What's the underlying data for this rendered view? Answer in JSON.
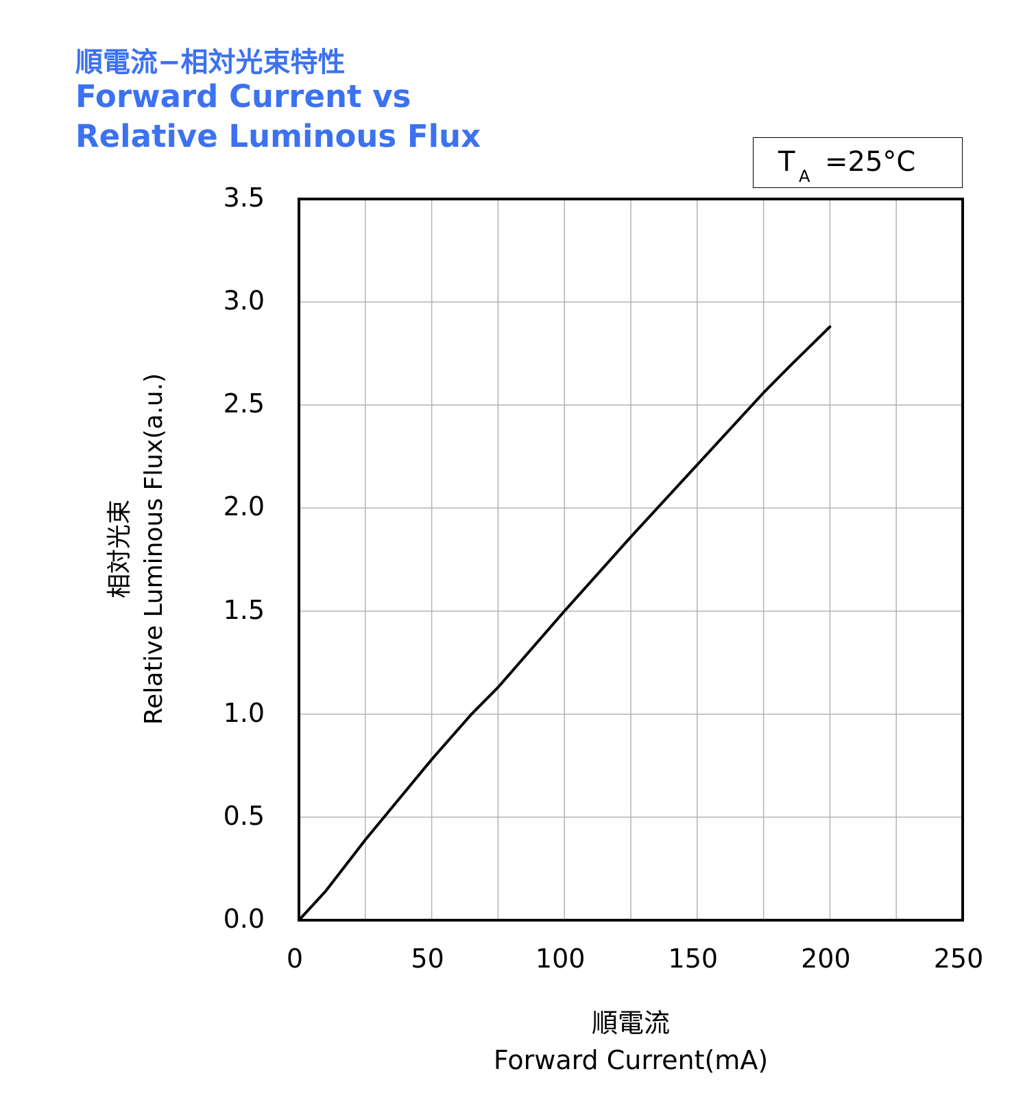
{
  "chart_data": {
    "type": "line",
    "title_jp": "順電流−相対光束特性",
    "title_en_line1": "Forward Current vs",
    "title_en_line2": "Relative Luminous Flux",
    "condition": {
      "symbol": "T",
      "subscript": "A",
      "value": "=25°C"
    },
    "xlabel_jp": "順電流",
    "xlabel": "Forward Current(mA)",
    "ylabel_jp": "相対光束",
    "ylabel": "Relative Luminous Flux(a.u.)",
    "xlim": [
      0,
      250
    ],
    "ylim": [
      0,
      3.5
    ],
    "x_ticks": [
      "0",
      "50",
      "100",
      "150",
      "200",
      "250"
    ],
    "y_ticks": [
      "0.0",
      "0.5",
      "1.0",
      "1.5",
      "2.0",
      "2.5",
      "3.0",
      "3.5"
    ],
    "grid": true,
    "series": [
      {
        "x": [
          0,
          10,
          25,
          50,
          65,
          75,
          100,
          125,
          150,
          175,
          185,
          200
        ],
        "y": [
          0,
          0.14,
          0.39,
          0.78,
          1.0,
          1.13,
          1.5,
          1.86,
          2.21,
          2.56,
          2.69,
          2.88
        ]
      }
    ]
  },
  "style": {
    "title_color": "#3c72f0",
    "line_color": "#000000",
    "grid_color": "#b3b3b3"
  }
}
